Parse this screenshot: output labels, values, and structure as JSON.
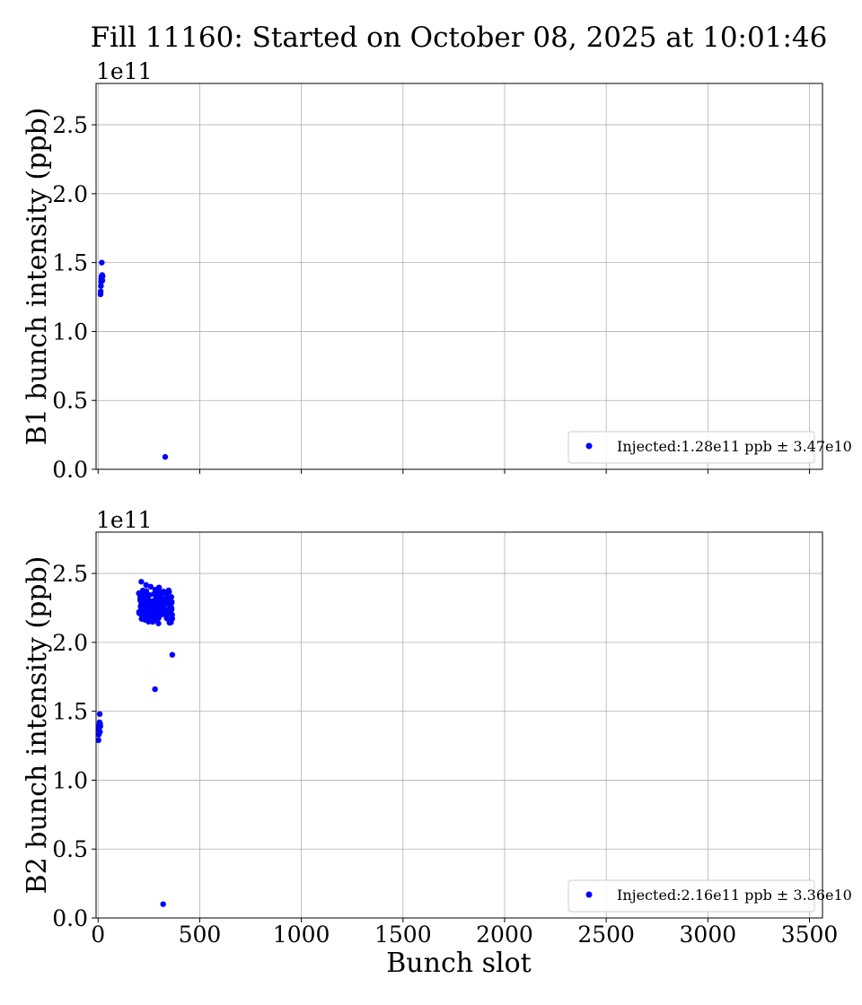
{
  "chart_data": {
    "title": "Fill 11160: Started on October 08, 2025 at 10:01:46",
    "type": "scatter",
    "xlabel": "Bunch slot",
    "xlim": [
      -10,
      3564
    ],
    "xticks": [
      0,
      500,
      1000,
      1500,
      2000,
      2500,
      3000,
      3500
    ],
    "grid": true,
    "marker_color": "#0000ff",
    "panels": [
      {
        "ylabel": "B1 bunch intensity (ppb)",
        "yscale_label": "1e11",
        "ylim": [
          0,
          2.8
        ],
        "yticks": [
          0.0,
          0.5,
          1.0,
          1.5,
          2.0,
          2.5
        ],
        "show_xtick_labels": false,
        "legend_location": "lower right",
        "series": [
          {
            "name": "Injected:1.28e11 ppb ± 3.47e10",
            "x": [
              12,
              13,
              14,
              15,
              16,
              17,
              18,
              19,
              20,
              21,
              22,
              330
            ],
            "y": [
              1.27,
              1.29,
              1.33,
              1.36,
              1.38,
              1.4,
              1.5,
              1.39,
              1.41,
              1.37,
              1.4,
              0.09
            ]
          }
        ]
      },
      {
        "ylabel": "B2 bunch intensity (ppb)",
        "yscale_label": "1e11",
        "ylim": [
          0,
          2.8
        ],
        "yticks": [
          0.0,
          0.5,
          1.0,
          1.5,
          2.0,
          2.5
        ],
        "show_xtick_labels": true,
        "legend_location": "lower right",
        "series": [
          {
            "name": "Injected:2.16e11 ppb ± 3.36e10",
            "x": [
              2,
              3,
              4,
              5,
              6,
              7,
              8,
              9,
              10,
              11,
              280,
              320,
              365
            ],
            "y": [
              1.29,
              1.33,
              1.36,
              1.38,
              1.4,
              1.42,
              1.48,
              1.35,
              1.41,
              1.39,
              1.66,
              0.1,
              1.91
            ],
            "cluster": {
              "x_range": [
                200,
                365
              ],
              "y_range": [
                2.08,
                2.47
              ],
              "count": 170
            }
          }
        ]
      }
    ]
  }
}
